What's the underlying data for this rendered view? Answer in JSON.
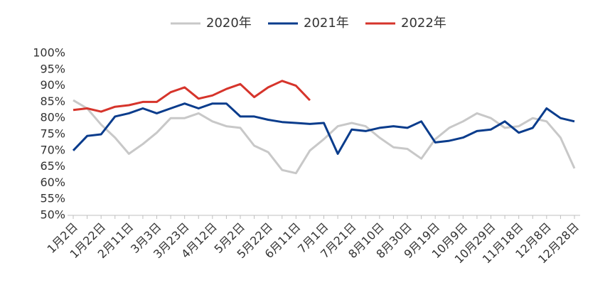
{
  "chart_data": {
    "type": "line",
    "categories": [
      "1月2日",
      null,
      "1月22日",
      null,
      "2月11日",
      null,
      "3月3日",
      null,
      "3月23日",
      null,
      "4月12日",
      null,
      "5月2日",
      null,
      "5月22日",
      null,
      "6月11日",
      null,
      "7月1日",
      null,
      "7月21日",
      null,
      "8月10日",
      null,
      "8月30日",
      null,
      "9月19日",
      null,
      "10月9日",
      null,
      "10月29日",
      null,
      "11月18日",
      null,
      "12月8日",
      null,
      "12月28日"
    ],
    "series": [
      {
        "name": "2020年",
        "color": "#c8c8c8",
        "values": [
          85.5,
          83,
          78,
          74,
          69,
          72,
          75.5,
          80,
          80,
          81.5,
          79,
          77.5,
          77,
          71.5,
          69.5,
          64,
          63,
          70,
          73.5,
          77.5,
          78.5,
          77.5,
          74,
          71,
          70.5,
          67.5,
          73.5,
          77,
          79,
          81.5,
          80,
          77,
          77.5,
          80,
          79,
          74,
          64.5
        ]
      },
      {
        "name": "2021年",
        "color": "#0a3c8c",
        "values": [
          70,
          74.5,
          75,
          80.5,
          81.5,
          83,
          81.5,
          83,
          84.5,
          83,
          84.5,
          84.5,
          80.5,
          80.5,
          79.5,
          78.8,
          78.5,
          78.2,
          78.5,
          69,
          76.5,
          76,
          77,
          77.5,
          77,
          79,
          72.5,
          73,
          74,
          76,
          76.5,
          79,
          75.5,
          77,
          83,
          80,
          79
        ]
      },
      {
        "name": "2022年",
        "color": "#d6342b",
        "values": [
          82.5,
          83,
          82,
          83.5,
          84,
          85,
          85,
          88,
          89.5,
          86,
          87,
          89,
          90.5,
          86.5,
          89.5,
          91.5,
          90,
          85.5,
          null,
          null,
          null,
          null,
          null,
          null,
          null,
          null,
          null,
          null,
          null,
          null,
          null,
          null,
          null,
          null,
          null,
          null,
          null
        ]
      }
    ],
    "ylim": [
      50,
      100
    ],
    "yticks": [
      {
        "value": 50,
        "label": "50%"
      },
      {
        "value": 55,
        "label": "55%"
      },
      {
        "value": 60,
        "label": "60%"
      },
      {
        "value": 65,
        "label": "65%"
      },
      {
        "value": 70,
        "label": "70%"
      },
      {
        "value": 75,
        "label": "75%"
      },
      {
        "value": 80,
        "label": "80%"
      },
      {
        "value": 85,
        "label": "85%"
      },
      {
        "value": 90,
        "label": "90%"
      },
      {
        "value": 95,
        "label": "95%"
      },
      {
        "value": 100,
        "label": "100%"
      }
    ]
  }
}
